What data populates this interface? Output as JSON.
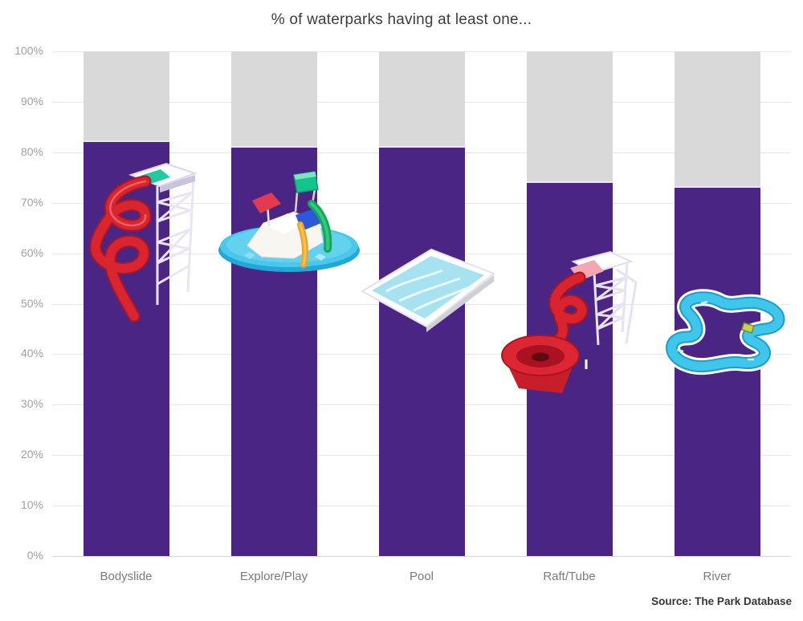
{
  "title": "% of waterparks having at least one...",
  "source_note": "Source: The Park Database",
  "y_axis": {
    "tick_labels": [
      "100%",
      "90%",
      "80%",
      "70%",
      "60%",
      "50%",
      "40%",
      "30%",
      "20%",
      "10%",
      "0%"
    ]
  },
  "colors": {
    "bar": "#4b2583",
    "remainder": "#d9d9d9",
    "gridline": "#e8e8e8",
    "axis_text": "#a2a2a2",
    "category_text": "#7b7b7b",
    "title_text": "#3d3d3d",
    "source_text": "#353535"
  },
  "chart_data": {
    "type": "bar",
    "stacked_remainder_to": 100,
    "title": "% of waterparks having at least one...",
    "categories": [
      "Bodyslide",
      "Explore/Play",
      "Pool",
      "Raft/Tube",
      "River"
    ],
    "values": [
      82,
      81,
      81,
      74,
      73
    ],
    "unit": "%",
    "ylim": [
      0,
      100
    ],
    "y_tick_step": 10,
    "grid": true,
    "legend": "none",
    "bar_color": "#4b2583",
    "remainder_color": "#d9d9d9",
    "icons": [
      "bodyslide-icon",
      "explore-play-icon",
      "pool-icon",
      "raft-tube-icon",
      "river-icon"
    ]
  }
}
